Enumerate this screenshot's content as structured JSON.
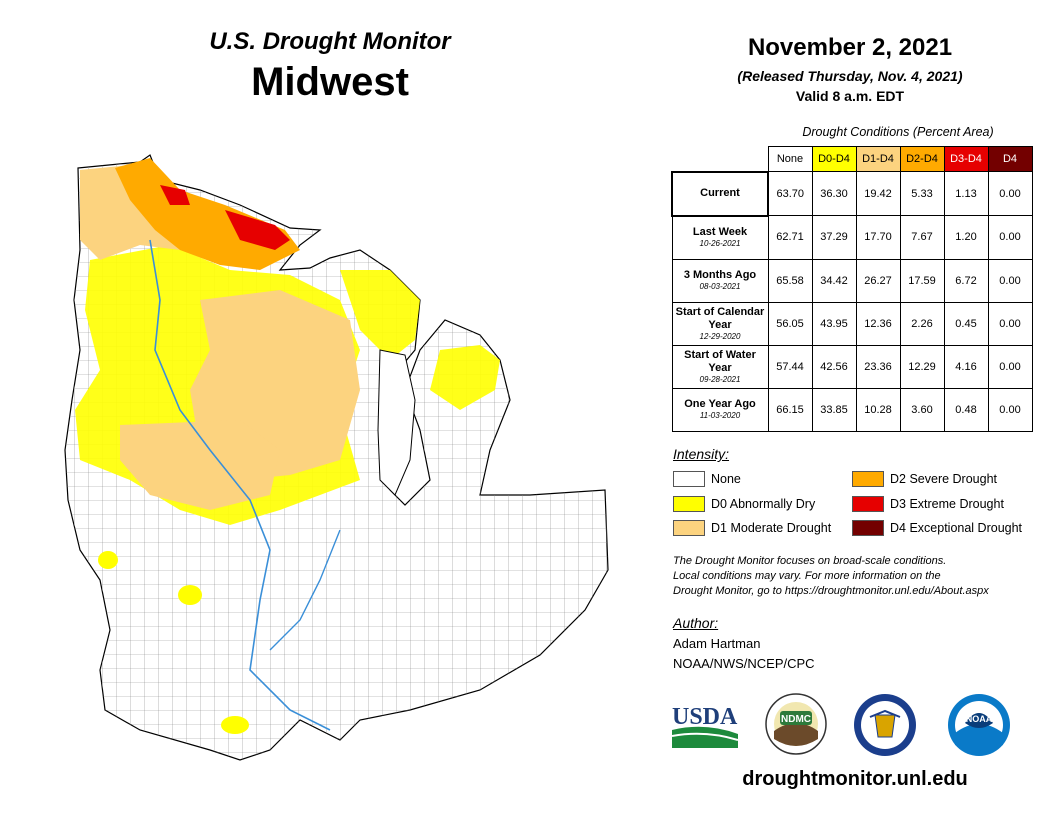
{
  "header": {
    "subtitle": "U.S. Drought Monitor",
    "region": "Midwest",
    "date": "November 2, 2021",
    "released": "(Released Thursday, Nov. 4, 2021)",
    "valid": "Valid 8 a.m. EDT"
  },
  "table": {
    "caption": "Drought Conditions (Percent Area)",
    "columns": [
      "None",
      "D0-D4",
      "D1-D4",
      "D2-D4",
      "D3-D4",
      "D4"
    ],
    "column_colors": [
      "#ffffff",
      "#ffff00",
      "#fcd37f",
      "#ffaa00",
      "#e60000",
      "#730000"
    ],
    "rows": [
      {
        "label": "Current",
        "date": "",
        "values": [
          "63.70",
          "36.30",
          "19.42",
          "5.33",
          "1.13",
          "0.00"
        ]
      },
      {
        "label": "Last Week",
        "date": "10-26-2021",
        "values": [
          "62.71",
          "37.29",
          "17.70",
          "7.67",
          "1.20",
          "0.00"
        ]
      },
      {
        "label": "3 Months Ago",
        "date": "08-03-2021",
        "values": [
          "65.58",
          "34.42",
          "26.27",
          "17.59",
          "6.72",
          "0.00"
        ]
      },
      {
        "label": "Start of Calendar Year",
        "date": "12-29-2020",
        "values": [
          "56.05",
          "43.95",
          "12.36",
          "2.26",
          "0.45",
          "0.00"
        ]
      },
      {
        "label": "Start of Water Year",
        "date": "09-28-2021",
        "values": [
          "57.44",
          "42.56",
          "23.36",
          "12.29",
          "4.16",
          "0.00"
        ]
      },
      {
        "label": "One Year Ago",
        "date": "11-03-2020",
        "values": [
          "66.15",
          "33.85",
          "10.28",
          "3.60",
          "0.48",
          "0.00"
        ]
      }
    ]
  },
  "legend": {
    "title": "Intensity:",
    "items": [
      {
        "label": "None",
        "color": "#ffffff"
      },
      {
        "label": "D0 Abnormally Dry",
        "color": "#ffff00"
      },
      {
        "label": "D1 Moderate Drought",
        "color": "#fcd37f"
      },
      {
        "label": "D2 Severe Drought",
        "color": "#ffaa00"
      },
      {
        "label": "D3 Extreme Drought",
        "color": "#e60000"
      },
      {
        "label": "D4 Exceptional Drought",
        "color": "#730000"
      }
    ]
  },
  "disclaimer": {
    "line1": "The Drought Monitor focuses on broad-scale conditions.",
    "line2": "Local conditions may vary. For more information on the",
    "line3": "Drought Monitor, go to https://droughtmonitor.unl.edu/About.aspx"
  },
  "author": {
    "title": "Author:",
    "name": "Adam Hartman",
    "org": "NOAA/NWS/NCEP/CPC"
  },
  "logos": {
    "usda": "USDA",
    "ndmc": "NDMC",
    "noaa": "NOAA"
  },
  "site": "droughtmonitor.unl.edu"
}
